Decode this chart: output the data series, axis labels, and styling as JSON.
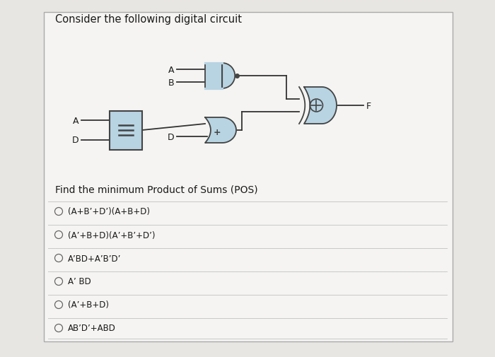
{
  "title": "Consider the following digital circuit",
  "question": "Find the miȵmum Product of Sums (POS)",
  "question_display": "Find the minimum Product of Sums (POS)",
  "options": [
    "(A+B’+D’)(A+B+D)",
    "(A’+B+D)(A’+B’+D’)",
    "A’BD+A’B’D’",
    "A’ BD",
    "(A’+B+D)",
    "AB’D’+ABD"
  ],
  "bg_color": "#e8e6e3",
  "panel_color": "#f5f4f2",
  "gate_fill": "#b8d4e3",
  "gate_edge": "#444444",
  "wire_color": "#333333",
  "text_color": "#1a1a1a",
  "sep_color": "#c8c8c8"
}
